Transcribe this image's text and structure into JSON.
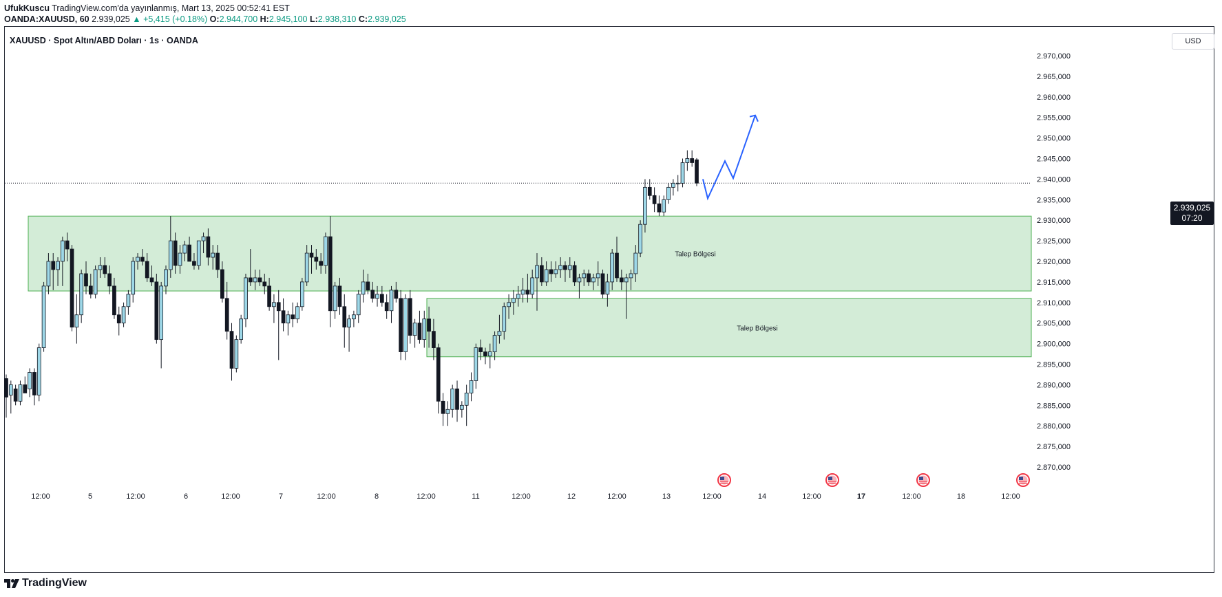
{
  "header": {
    "author": "UfukKuscu",
    "published": "TradingView.com'da yayınlanmış, Mart 13, 2025 00:52:41 EST",
    "symbol": "OANDA:XAUUSD, 60",
    "last": "2.939,025",
    "change": "▲ +5,415 (+0.18%)",
    "o_label": "O:",
    "o": "2.944,700",
    "h_label": "H:",
    "h": "2.945,100",
    "l_label": "L:",
    "l": "2.938,310",
    "c_label": "C:",
    "c": "2.939,025"
  },
  "chart_title": "XAUUSD · Spot Altın/ABD Doları · 1s · OANDA",
  "currency": "USD",
  "price_tag": {
    "price": "2.939,025",
    "countdown": "07:20"
  },
  "footer": {
    "brand": "TradingView"
  },
  "colors": {
    "up": "#089981",
    "down": "#131722",
    "candle_up_fill": "#9ed8e8",
    "zone_fill": "#d3ecd7",
    "zone_border": "#4caf50",
    "arrow": "#2962ff",
    "grid": "#2a2e39"
  },
  "chart_data": {
    "type": "candlestick",
    "title": "XAUUSD · Spot Altın/ABD Doları · 1s · OANDA",
    "y_axis_ticks": [
      "2.970,000",
      "2.965,000",
      "2.960,000",
      "2.955,000",
      "2.950,000",
      "2.945,000",
      "2.940,000",
      "2.935,000",
      "2.930,000",
      "2.925,000",
      "2.920,000",
      "2.915,000",
      "2.910,000",
      "2.905,000",
      "2.900,000",
      "2.895,000",
      "2.890,000",
      "2.885,000",
      "2.880,000",
      "2.875,000",
      "2.870,000"
    ],
    "y_ticks_values": [
      2970,
      2965,
      2960,
      2955,
      2950,
      2945,
      2940,
      2935,
      2930,
      2925,
      2920,
      2915,
      2910,
      2905,
      2900,
      2895,
      2890,
      2885,
      2880,
      2875,
      2870
    ],
    "ylim": [
      2864,
      2975
    ],
    "x_axis_labels": [
      "12:00",
      "5",
      "12:00",
      "6",
      "12:00",
      "7",
      "12:00",
      "8",
      "12:00",
      "11",
      "12:00",
      "12",
      "12:00",
      "13",
      "12:00",
      "14",
      "12:00",
      "17",
      "12:00",
      "18",
      "12:00"
    ],
    "x_axis_bold": [
      false,
      false,
      false,
      false,
      false,
      false,
      false,
      false,
      false,
      false,
      false,
      false,
      false,
      false,
      false,
      false,
      false,
      true,
      false,
      false,
      false
    ],
    "zones": [
      {
        "label": "Talep Bölgesi",
        "top": 2931.0,
        "bottom": 2912.8
      },
      {
        "label": "Talep Bölgesi",
        "top": 2911.0,
        "bottom": 2896.8
      }
    ],
    "last_price": 2939.025,
    "projection": [
      2940.0,
      2935.3,
      2944.4,
      2940.2,
      2955.5
    ],
    "ohlc": [
      [
        2891.5,
        2892.5,
        2882,
        2887.0
      ],
      [
        2887.5,
        2891,
        2883,
        2890
      ],
      [
        2889,
        2890,
        2885,
        2886
      ],
      [
        2886,
        2891,
        2885,
        2890
      ],
      [
        2890,
        2892,
        2888,
        2888
      ],
      [
        2889,
        2894,
        2887,
        2893
      ],
      [
        2893,
        2894,
        2885,
        2887.5
      ],
      [
        2887.5,
        2900,
        2886,
        2899
      ],
      [
        2899,
        2915,
        2898,
        2914
      ],
      [
        2914,
        2922,
        2912,
        2920
      ],
      [
        2920,
        2922,
        2913,
        2918
      ],
      [
        2918,
        2921,
        2914,
        2920
      ],
      [
        2920,
        2926,
        2914,
        2925
      ],
      [
        2925,
        2927,
        2920,
        2923
      ],
      [
        2923,
        2924,
        2903,
        2904
      ],
      [
        2904,
        2912,
        2900,
        2907
      ],
      [
        2907,
        2918,
        2905,
        2917
      ],
      [
        2917,
        2920,
        2912,
        2914
      ],
      [
        2914,
        2917,
        2911,
        2912
      ],
      [
        2912,
        2919,
        2911,
        2918
      ],
      [
        2918,
        2921,
        2916,
        2919
      ],
      [
        2919,
        2921,
        2916,
        2917
      ],
      [
        2917,
        2919,
        2912,
        2914
      ],
      [
        2914,
        2916,
        2906,
        2907
      ],
      [
        2907,
        2909,
        2902,
        2905
      ],
      [
        2905,
        2910,
        2904,
        2909
      ],
      [
        2909,
        2913,
        2907,
        2912
      ],
      [
        2912,
        2921,
        2910,
        2920
      ],
      [
        2920,
        2922,
        2918,
        2921
      ],
      [
        2921,
        2923,
        2919,
        2920
      ],
      [
        2920,
        2922,
        2915,
        2916
      ],
      [
        2916,
        2919,
        2914,
        2915
      ],
      [
        2915,
        2917,
        2900,
        2901
      ],
      [
        2901,
        2915,
        2894,
        2914
      ],
      [
        2914,
        2919,
        2912,
        2918
      ],
      [
        2918,
        2931,
        2916,
        2925
      ],
      [
        2925,
        2927,
        2917,
        2919
      ],
      [
        2919,
        2924,
        2917,
        2922
      ],
      [
        2922,
        2925,
        2920,
        2924
      ],
      [
        2924,
        2926,
        2921,
        2920
      ],
      [
        2920,
        2922,
        2918,
        2919
      ],
      [
        2919,
        2924,
        2918,
        2925
      ],
      [
        2925,
        2927,
        2922,
        2926
      ],
      [
        2926,
        2928,
        2919,
        2921
      ],
      [
        2921,
        2924,
        2918,
        2922
      ],
      [
        2922,
        2924,
        2916,
        2918
      ],
      [
        2918,
        2920,
        2910,
        2911
      ],
      [
        2911,
        2915,
        2901,
        2903
      ],
      [
        2903,
        2905,
        2891,
        2894
      ],
      [
        2894,
        2902,
        2893,
        2901
      ],
      [
        2901,
        2907,
        2900,
        2906
      ],
      [
        2906,
        2917,
        2904,
        2916
      ],
      [
        2916,
        2923,
        2914,
        2915
      ],
      [
        2915,
        2918,
        2913,
        2916
      ],
      [
        2916,
        2918,
        2914,
        2915
      ],
      [
        2915,
        2917,
        2912,
        2914
      ],
      [
        2914,
        2916,
        2908,
        2909
      ],
      [
        2909,
        2912,
        2905,
        2910
      ],
      [
        2910,
        2913,
        2896,
        2908
      ],
      [
        2908,
        2911,
        2903,
        2905
      ],
      [
        2905,
        2908,
        2902,
        2907
      ],
      [
        2907,
        2910,
        2904,
        2906
      ],
      [
        2906,
        2910,
        2905,
        2909
      ],
      [
        2909,
        2916,
        2908,
        2915
      ],
      [
        2915,
        2924,
        2914,
        2922
      ],
      [
        2922,
        2924,
        2917,
        2921
      ],
      [
        2921,
        2923,
        2918,
        2920
      ],
      [
        2920,
        2922,
        2917,
        2919
      ],
      [
        2919,
        2927,
        2917,
        2926
      ],
      [
        2926,
        2931,
        2904,
        2908
      ],
      [
        2908,
        2915,
        2906,
        2914
      ],
      [
        2914,
        2916,
        2907,
        2909
      ],
      [
        2909,
        2912,
        2899,
        2904
      ],
      [
        2904,
        2907,
        2898,
        2906
      ],
      [
        2906,
        2908,
        2904,
        2907
      ],
      [
        2907,
        2913,
        2905,
        2912
      ],
      [
        2912,
        2918,
        2910,
        2915
      ],
      [
        2915,
        2917,
        2912,
        2913
      ],
      [
        2913,
        2915,
        2910,
        2911
      ],
      [
        2911,
        2914,
        2909,
        2912
      ],
      [
        2912,
        2914,
        2909,
        2910
      ],
      [
        2910,
        2912,
        2906,
        2908
      ],
      [
        2908,
        2914,
        2905,
        2913
      ],
      [
        2913,
        2915,
        2910,
        2911
      ],
      [
        2911,
        2913,
        2896,
        2898
      ],
      [
        2898,
        2912,
        2896,
        2911
      ],
      [
        2911,
        2913,
        2900,
        2902
      ],
      [
        2902,
        2906,
        2899,
        2905
      ],
      [
        2905,
        2908,
        2900,
        2901
      ],
      [
        2901,
        2908,
        2899,
        2906
      ],
      [
        2906,
        2909,
        2899,
        2903
      ],
      [
        2903,
        2906,
        2896,
        2899
      ],
      [
        2899,
        2900,
        2883,
        2886
      ],
      [
        2886,
        2888,
        2880,
        2883
      ],
      [
        2883,
        2886,
        2880,
        2884
      ],
      [
        2884,
        2890,
        2882,
        2889
      ],
      [
        2889,
        2891,
        2881,
        2884
      ],
      [
        2884,
        2886,
        2882,
        2885
      ],
      [
        2885,
        2890,
        2880,
        2888
      ],
      [
        2888,
        2893,
        2886,
        2891
      ],
      [
        2891,
        2900,
        2889,
        2899
      ],
      [
        2899,
        2901,
        2896,
        2898
      ],
      [
        2898,
        2899,
        2895,
        2897
      ],
      [
        2897,
        2900,
        2894,
        2898
      ],
      [
        2898,
        2903,
        2896,
        2902
      ],
      [
        2902,
        2907,
        2900,
        2903
      ],
      [
        2903,
        2910,
        2901,
        2909
      ],
      [
        2909,
        2912,
        2906,
        2910
      ],
      [
        2910,
        2913,
        2907,
        2911
      ],
      [
        2911,
        2914,
        2909,
        2912
      ],
      [
        2912,
        2916,
        2910,
        2913
      ],
      [
        2913,
        2917,
        2910,
        2912
      ],
      [
        2912,
        2918,
        2911,
        2916
      ],
      [
        2916,
        2922,
        2908,
        2919
      ],
      [
        2919,
        2921,
        2914,
        2915
      ],
      [
        2915,
        2920,
        2914,
        2918
      ],
      [
        2918,
        2920,
        2915,
        2917
      ],
      [
        2917,
        2920,
        2916,
        2918
      ],
      [
        2918,
        2921,
        2916,
        2919
      ],
      [
        2919,
        2920,
        2915,
        2918
      ],
      [
        2918,
        2921,
        2916,
        2919
      ],
      [
        2919,
        2920,
        2914,
        2915
      ],
      [
        2915,
        2917,
        2911,
        2916
      ],
      [
        2916,
        2918,
        2914,
        2917
      ],
      [
        2917,
        2918,
        2914,
        2915
      ],
      [
        2915,
        2917,
        2913,
        2916
      ],
      [
        2916,
        2920,
        2914,
        2917
      ],
      [
        2917,
        2918,
        2911,
        2912
      ],
      [
        2912,
        2917,
        2909,
        2915
      ],
      [
        2915,
        2923,
        2913,
        2922
      ],
      [
        2922,
        2926,
        2915,
        2916
      ],
      [
        2916,
        2918,
        2913,
        2915
      ],
      [
        2915,
        2917,
        2906,
        2916
      ],
      [
        2916,
        2918,
        2913,
        2917
      ],
      [
        2917,
        2924,
        2915,
        2922
      ],
      [
        2922,
        2930,
        2921,
        2929
      ],
      [
        2929,
        2940,
        2927,
        2938
      ],
      [
        2938,
        2940,
        2935,
        2936
      ],
      [
        2936,
        2938,
        2932,
        2934
      ],
      [
        2934,
        2936,
        2931,
        2932
      ],
      [
        2932,
        2936,
        2931,
        2935
      ],
      [
        2935,
        2939,
        2934,
        2938
      ],
      [
        2938,
        2940,
        2936,
        2939
      ],
      [
        2939,
        2941,
        2937,
        2939
      ],
      [
        2939,
        2945,
        2938,
        2944
      ],
      [
        2944,
        2947,
        2942,
        2945
      ],
      [
        2945,
        2947,
        2943,
        2944
      ],
      [
        2944.7,
        2945.1,
        2938.3,
        2939.025
      ]
    ]
  }
}
